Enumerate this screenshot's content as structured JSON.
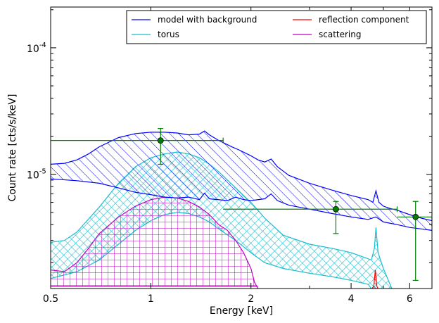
{
  "chart_data": {
    "type": "line",
    "xlabel": "Energy [keV]",
    "ylabel": "Count rate [cts/s/keV]",
    "xscale": "log",
    "yscale": "log",
    "xlim": [
      0.5,
      7.0
    ],
    "ylim": [
      1.25e-06,
      0.00021
    ],
    "grid": false,
    "legend_position": "top-right",
    "xticks": [
      {
        "value": 0.5,
        "label": "0.5"
      },
      {
        "value": 1,
        "label": "1"
      },
      {
        "value": 2,
        "label": "2"
      },
      {
        "value": 4,
        "label": "4"
      },
      {
        "value": 6,
        "label": "6"
      }
    ],
    "yticks": [
      {
        "value": 1e-05,
        "mantissa": "10",
        "exponent": "-5"
      },
      {
        "value": 0.0001,
        "mantissa": "10",
        "exponent": "-4"
      }
    ],
    "series": [
      {
        "name": "model with background",
        "color": "#0000ff",
        "hatch": "diagonal",
        "upper": [
          [
            0.5,
            1.2e-05
          ],
          [
            0.55,
            1.22e-05
          ],
          [
            0.6,
            1.3e-05
          ],
          [
            0.65,
            1.45e-05
          ],
          [
            0.7,
            1.65e-05
          ],
          [
            0.8,
            1.95e-05
          ],
          [
            0.9,
            2.1e-05
          ],
          [
            1.0,
            2.15e-05
          ],
          [
            1.1,
            2.15e-05
          ],
          [
            1.2,
            2.12e-05
          ],
          [
            1.3,
            2.05e-05
          ],
          [
            1.4,
            2.08e-05
          ],
          [
            1.45,
            2.2e-05
          ],
          [
            1.5,
            2.05e-05
          ],
          [
            1.6,
            1.85e-05
          ],
          [
            1.75,
            1.65e-05
          ],
          [
            1.85,
            1.55e-05
          ],
          [
            2.0,
            1.4e-05
          ],
          [
            2.1,
            1.3e-05
          ],
          [
            2.2,
            1.25e-05
          ],
          [
            2.3,
            1.32e-05
          ],
          [
            2.4,
            1.15e-05
          ],
          [
            2.6,
            9.8e-06
          ],
          [
            3.0,
            8.5e-06
          ],
          [
            3.5,
            7.5e-06
          ],
          [
            4.0,
            6.8e-06
          ],
          [
            4.5,
            6.3e-06
          ],
          [
            4.65,
            6e-06
          ],
          [
            4.75,
            7.4e-06
          ],
          [
            4.85,
            6e-06
          ],
          [
            5.0,
            5.6e-06
          ],
          [
            5.2,
            5.4e-06
          ],
          [
            5.5,
            5.2e-06
          ],
          [
            6.0,
            4.8e-06
          ],
          [
            6.5,
            4.5e-06
          ],
          [
            7.0,
            4.3e-06
          ]
        ],
        "lower": [
          [
            0.5,
            9.2e-06
          ],
          [
            0.6,
            8.9e-06
          ],
          [
            0.7,
            8.5e-06
          ],
          [
            0.8,
            7.8e-06
          ],
          [
            0.9,
            7.2e-06
          ],
          [
            1.0,
            6.9e-06
          ],
          [
            1.1,
            6.6e-06
          ],
          [
            1.2,
            6.5e-06
          ],
          [
            1.3,
            6.6e-06
          ],
          [
            1.4,
            6.3e-06
          ],
          [
            1.45,
            7.1e-06
          ],
          [
            1.5,
            6.4e-06
          ],
          [
            1.7,
            6.2e-06
          ],
          [
            1.8,
            6.6e-06
          ],
          [
            1.9,
            6.3e-06
          ],
          [
            2.0,
            6.2e-06
          ],
          [
            2.2,
            6.4e-06
          ],
          [
            2.3,
            7e-06
          ],
          [
            2.4,
            6.2e-06
          ],
          [
            2.6,
            5.7e-06
          ],
          [
            3.0,
            5.3e-06
          ],
          [
            3.5,
            4.9e-06
          ],
          [
            4.0,
            4.6e-06
          ],
          [
            4.5,
            4.4e-06
          ],
          [
            4.75,
            4.6e-06
          ],
          [
            5.0,
            4.2e-06
          ],
          [
            5.5,
            4e-06
          ],
          [
            6.0,
            3.8e-06
          ],
          [
            6.5,
            3.7e-06
          ],
          [
            7.0,
            3.6e-06
          ]
        ]
      },
      {
        "name": "torus",
        "color": "#17becf",
        "hatch": "cross",
        "upper": [
          [
            0.5,
            2.9e-06
          ],
          [
            0.55,
            3e-06
          ],
          [
            0.6,
            3.5e-06
          ],
          [
            0.7,
            5.5e-06
          ],
          [
            0.8,
            8.5e-06
          ],
          [
            0.9,
            1.15e-05
          ],
          [
            1.0,
            1.35e-05
          ],
          [
            1.1,
            1.45e-05
          ],
          [
            1.2,
            1.5e-05
          ],
          [
            1.3,
            1.45e-05
          ],
          [
            1.4,
            1.35e-05
          ],
          [
            1.5,
            1.2e-05
          ],
          [
            1.6,
            1.05e-05
          ],
          [
            1.7,
            9e-06
          ],
          [
            1.8,
            7.8e-06
          ],
          [
            1.9,
            6.8e-06
          ],
          [
            2.0,
            6e-06
          ],
          [
            2.2,
            4.5e-06
          ],
          [
            2.5,
            3.3e-06
          ],
          [
            3.0,
            2.8e-06
          ],
          [
            3.5,
            2.6e-06
          ],
          [
            4.0,
            2.4e-06
          ],
          [
            4.4,
            2.2e-06
          ],
          [
            4.6,
            2.1e-06
          ],
          [
            4.7,
            2.6e-06
          ],
          [
            4.75,
            3.8e-06
          ],
          [
            4.82,
            2.4e-06
          ],
          [
            5.0,
            1.8e-06
          ],
          [
            5.3,
            1.25e-06
          ]
        ],
        "lower": [
          [
            0.5,
            1.5e-06
          ],
          [
            0.55,
            1.6e-06
          ],
          [
            0.6,
            1.7e-06
          ],
          [
            0.7,
            2.1e-06
          ],
          [
            0.8,
            2.8e-06
          ],
          [
            0.9,
            3.6e-06
          ],
          [
            1.0,
            4.3e-06
          ],
          [
            1.1,
            4.8e-06
          ],
          [
            1.2,
            5e-06
          ],
          [
            1.3,
            4.9e-06
          ],
          [
            1.4,
            4.6e-06
          ],
          [
            1.5,
            4.2e-06
          ],
          [
            1.6,
            3.7e-06
          ],
          [
            1.8,
            3e-06
          ],
          [
            2.0,
            2.4e-06
          ],
          [
            2.2,
            2e-06
          ],
          [
            2.5,
            1.8e-06
          ],
          [
            3.0,
            1.65e-06
          ],
          [
            3.5,
            1.55e-06
          ],
          [
            4.0,
            1.45e-06
          ],
          [
            4.5,
            1.35e-06
          ],
          [
            4.6,
            1.25e-06
          ]
        ]
      },
      {
        "name": "reflection component",
        "color": "#ff0000",
        "hatch": "diagonal",
        "upper": [
          [
            4.62,
            1.25e-06
          ],
          [
            4.68,
            1.3e-06
          ],
          [
            4.71,
            1.55e-06
          ],
          [
            4.73,
            1.75e-06
          ],
          [
            4.75,
            1.55e-06
          ],
          [
            4.78,
            1.3e-06
          ],
          [
            4.82,
            1.25e-06
          ]
        ],
        "lower": [
          [
            4.62,
            1.25e-06
          ],
          [
            4.82,
            1.25e-06
          ]
        ]
      },
      {
        "name": "scattering",
        "color": "#bf00bf",
        "hatch": "grid",
        "upper": [
          [
            0.5,
            1.75e-06
          ],
          [
            0.55,
            1.7e-06
          ],
          [
            0.6,
            2e-06
          ],
          [
            0.65,
            2.6e-06
          ],
          [
            0.7,
            3.4e-06
          ],
          [
            0.8,
            4.6e-06
          ],
          [
            0.9,
            5.6e-06
          ],
          [
            1.0,
            6.3e-06
          ],
          [
            1.1,
            6.6e-06
          ],
          [
            1.2,
            6.5e-06
          ],
          [
            1.3,
            6.1e-06
          ],
          [
            1.4,
            5.5e-06
          ],
          [
            1.5,
            4.8e-06
          ],
          [
            1.6,
            4e-06
          ],
          [
            1.7,
            3.6e-06
          ],
          [
            1.8,
            3e-06
          ],
          [
            1.9,
            2.4e-06
          ],
          [
            2.0,
            1.8e-06
          ],
          [
            2.05,
            1.4e-06
          ],
          [
            2.1,
            1.25e-06
          ]
        ],
        "lower": [
          [
            0.5,
            1.3e-06
          ],
          [
            2.1,
            1.3e-06
          ]
        ]
      }
    ],
    "data_points": {
      "color": "#008000",
      "points": [
        {
          "x": 1.07,
          "y": 1.85e-05,
          "xerr": [
            0.5,
            1.65
          ],
          "yerr": [
            1.2e-05,
            2.3e-05
          ]
        },
        {
          "x": 3.6,
          "y": 5.3e-06,
          "xerr": [
            1.65,
            5.5
          ],
          "yerr": [
            3.4e-06,
            6.1e-06
          ]
        },
        {
          "x": 6.25,
          "y": 4.6e-06,
          "xerr": [
            5.5,
            7.0
          ],
          "yerr": [
            1.45e-06,
            6.1e-06
          ]
        }
      ]
    }
  }
}
